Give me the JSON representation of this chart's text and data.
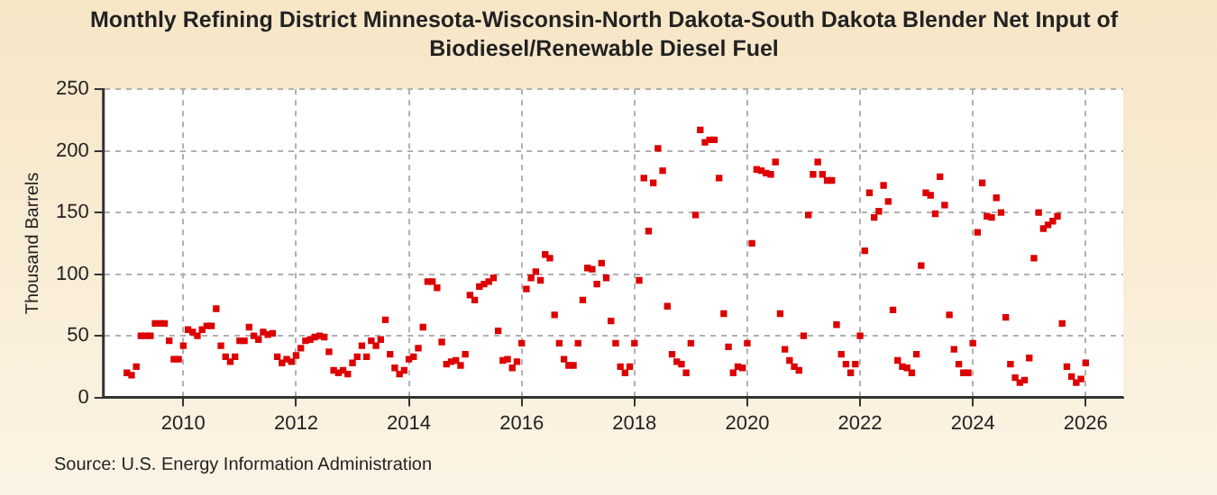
{
  "chart_data": {
    "type": "scatter",
    "title": "Monthly Refining District Minnesota-Wisconsin-North Dakota-South Dakota Blender Net Input of Biodiesel/Renewable Diesel Fuel",
    "ylabel": "Thousand Barrels",
    "annotations": [
      "Source: U.S. Energy Information Administration"
    ],
    "x": [
      "2009-01",
      "2009-02",
      "2009-03",
      "2009-04",
      "2009-05",
      "2009-06",
      "2009-07",
      "2009-08",
      "2009-09",
      "2009-10",
      "2009-11",
      "2009-12",
      "2010-01",
      "2010-02",
      "2010-03",
      "2010-04",
      "2010-05",
      "2010-06",
      "2010-07",
      "2010-08",
      "2010-09",
      "2010-10",
      "2010-11",
      "2010-12",
      "2011-01",
      "2011-02",
      "2011-03",
      "2011-04",
      "2011-05",
      "2011-06",
      "2011-07",
      "2011-08",
      "2011-09",
      "2011-10",
      "2011-11",
      "2011-12",
      "2012-01",
      "2012-02",
      "2012-03",
      "2012-04",
      "2012-05",
      "2012-06",
      "2012-07",
      "2012-08",
      "2012-09",
      "2012-10",
      "2012-11",
      "2012-12",
      "2013-01",
      "2013-02",
      "2013-03",
      "2013-04",
      "2013-05",
      "2013-06",
      "2013-07",
      "2013-08",
      "2013-09",
      "2013-10",
      "2013-11",
      "2013-12",
      "2014-01",
      "2014-02",
      "2014-03",
      "2014-04",
      "2014-05",
      "2014-06",
      "2014-07",
      "2014-08",
      "2014-09",
      "2014-10",
      "2014-11",
      "2014-12",
      "2015-01",
      "2015-02",
      "2015-03",
      "2015-04",
      "2015-05",
      "2015-06",
      "2015-07",
      "2015-08",
      "2015-09",
      "2015-10",
      "2015-11",
      "2015-12",
      "2016-01",
      "2016-02",
      "2016-03",
      "2016-04",
      "2016-05",
      "2016-06",
      "2016-07",
      "2016-08",
      "2016-09",
      "2016-10",
      "2016-11",
      "2016-12",
      "2017-01",
      "2017-02",
      "2017-03",
      "2017-04",
      "2017-05",
      "2017-06",
      "2017-07",
      "2017-08",
      "2017-09",
      "2017-10",
      "2017-11",
      "2017-12",
      "2018-01",
      "2018-02",
      "2018-03",
      "2018-04",
      "2018-05",
      "2018-06",
      "2018-07",
      "2018-08",
      "2018-09",
      "2018-10",
      "2018-11",
      "2018-12",
      "2019-01",
      "2019-02",
      "2019-03",
      "2019-04",
      "2019-05",
      "2019-06",
      "2019-07",
      "2019-08",
      "2019-09",
      "2019-10",
      "2019-11",
      "2019-12",
      "2020-01",
      "2020-02",
      "2020-03",
      "2020-04",
      "2020-05",
      "2020-06",
      "2020-07",
      "2020-08",
      "2020-09",
      "2020-10",
      "2020-11",
      "2020-12",
      "2021-01",
      "2021-02",
      "2021-03",
      "2021-04",
      "2021-05",
      "2021-06",
      "2021-07",
      "2021-08",
      "2021-09",
      "2021-10",
      "2021-11",
      "2021-12",
      "2022-01",
      "2022-02",
      "2022-03",
      "2022-04",
      "2022-05",
      "2022-06",
      "2022-07",
      "2022-08",
      "2022-09",
      "2022-10",
      "2022-11",
      "2022-12",
      "2023-01",
      "2023-02",
      "2023-03",
      "2023-04",
      "2023-05",
      "2023-06",
      "2023-07",
      "2023-08",
      "2023-09",
      "2023-10",
      "2023-11",
      "2023-12",
      "2024-01",
      "2024-02",
      "2024-03",
      "2024-04",
      "2024-05",
      "2024-06",
      "2024-07",
      "2024-08",
      "2024-09",
      "2024-10",
      "2024-11",
      "2024-12",
      "2025-01",
      "2025-02",
      "2025-03",
      "2025-04",
      "2025-05",
      "2025-06",
      "2025-07",
      "2025-08",
      "2025-09",
      "2025-10",
      "2025-11",
      "2025-12",
      "2026-01"
    ],
    "values": [
      20,
      18,
      25,
      50,
      50,
      50,
      60,
      60,
      60,
      46,
      31,
      31,
      42,
      55,
      53,
      50,
      55,
      58,
      58,
      72,
      42,
      33,
      29,
      33,
      46,
      46,
      57,
      50,
      47,
      53,
      51,
      52,
      33,
      28,
      31,
      29,
      34,
      40,
      46,
      47,
      49,
      50,
      49,
      37,
      22,
      20,
      22,
      19,
      28,
      33,
      42,
      33,
      46,
      42,
      47,
      63,
      35,
      24,
      19,
      22,
      31,
      33,
      40,
      57,
      94,
      94,
      89,
      45,
      27,
      29,
      30,
      26,
      35,
      83,
      79,
      90,
      92,
      94,
      97,
      54,
      30,
      31,
      24,
      29,
      44,
      88,
      97,
      102,
      95,
      116,
      113,
      67,
      44,
      31,
      26,
      26,
      44,
      79,
      105,
      104,
      92,
      109,
      97,
      62,
      44,
      25,
      20,
      25,
      44,
      95,
      178,
      135,
      174,
      202,
      184,
      74,
      35,
      29,
      27,
      20,
      44,
      148,
      217,
      207,
      209,
      209,
      178,
      68,
      41,
      20,
      25,
      24,
      44,
      125,
      185,
      184,
      182,
      181,
      191,
      68,
      39,
      30,
      25,
      22,
      50,
      148,
      181,
      191,
      181,
      176,
      176,
      59,
      35,
      27,
      20,
      27,
      50,
      119,
      166,
      146,
      151,
      172,
      159,
      71,
      30,
      25,
      24,
      20,
      35,
      107,
      166,
      164,
      149,
      179,
      156,
      67,
      39,
      27,
      20,
      20,
      44,
      134,
      174,
      147,
      146,
      162,
      150,
      65,
      27,
      16,
      12,
      14,
      32,
      113,
      150,
      137,
      140,
      143,
      147,
      60,
      25,
      17,
      12,
      15,
      28
    ],
    "color": "#dd0000",
    "marker": "square",
    "grid": true,
    "legend": false,
    "xlim": [
      "2008-08",
      "2026-09"
    ],
    "xticks": [
      {
        "value": "2010",
        "label": "2010"
      },
      {
        "value": "2012",
        "label": "2012"
      },
      {
        "value": "2014",
        "label": "2014"
      },
      {
        "value": "2016",
        "label": "2016"
      },
      {
        "value": "2018",
        "label": "2018"
      },
      {
        "value": "2020",
        "label": "2020"
      },
      {
        "value": "2022",
        "label": "2022"
      },
      {
        "value": "2024",
        "label": "2024"
      },
      {
        "value": "2026",
        "label": "2026"
      }
    ],
    "ylim": [
      0,
      250
    ],
    "yticks": [
      0,
      50,
      100,
      150,
      200,
      250
    ]
  }
}
